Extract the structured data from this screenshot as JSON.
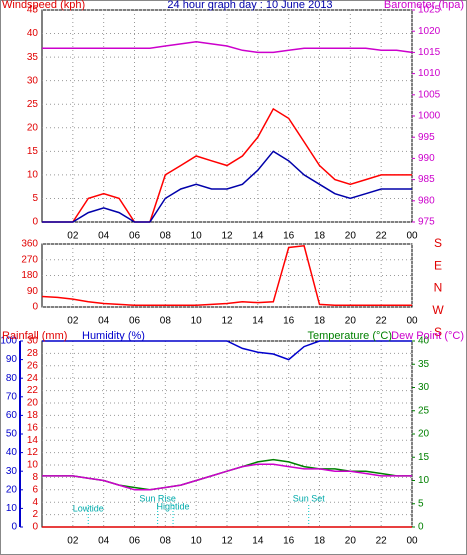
{
  "chart_data": [
    {
      "type": "line",
      "title": "24 hour graph day : 10 June 2013",
      "y_label": "Windspeed (kph)",
      "y2_label": "Barometer (hpa)",
      "ycolor": "#e00000",
      "y2color": "#cc00cc",
      "x": [
        0,
        1,
        2,
        3,
        4,
        5,
        6,
        7,
        8,
        9,
        10,
        11,
        12,
        13,
        14,
        15,
        16,
        17,
        18,
        19,
        20,
        21,
        22,
        23,
        24
      ],
      "xlim": [
        0,
        24
      ],
      "xticks": [
        {
          "value": 2,
          "label": "02"
        },
        {
          "value": 4,
          "label": "04"
        },
        {
          "value": 6,
          "label": "06"
        },
        {
          "value": 8,
          "label": "08"
        },
        10,
        12,
        14,
        16,
        18,
        20,
        22,
        {
          "value": 24,
          "label": "00"
        }
      ],
      "ylim": [
        0,
        45
      ],
      "yticks": [
        0,
        5,
        10,
        15,
        20,
        25,
        30,
        35,
        40,
        45
      ],
      "y2lim": [
        975,
        1025
      ],
      "y2ticks": [
        975,
        980,
        985,
        990,
        995,
        1000,
        1005,
        1010,
        1015,
        1020,
        1025
      ],
      "series": [
        {
          "color": "#ff0000",
          "values": [
            0,
            0,
            0,
            5,
            6,
            5,
            0,
            0,
            10,
            12,
            14,
            13,
            12,
            14,
            18,
            24,
            22,
            17,
            12,
            9,
            8,
            9,
            10,
            10,
            10
          ]
        },
        {
          "color": "#0000aa",
          "values": [
            0,
            0,
            0,
            2,
            3,
            2,
            0,
            0,
            5,
            7,
            8,
            7,
            7,
            8,
            11,
            15,
            13,
            10,
            8,
            6,
            5,
            6,
            7,
            7,
            7
          ]
        },
        {
          "color": "#cc00cc",
          "axis": "y2",
          "values": [
            1016,
            1016,
            1016,
            1016,
            1016,
            1016,
            1016,
            1016,
            1016.5,
            1017,
            1017.5,
            1017,
            1016.5,
            1015.5,
            1015,
            1015,
            1015.5,
            1016,
            1016,
            1016,
            1016,
            1016,
            1015.5,
            1015.5,
            1015
          ]
        }
      ]
    },
    {
      "type": "line",
      "ycolor": "#e00000",
      "compass_labels": [
        "S",
        "E",
        "N",
        "W",
        "S"
      ],
      "x": [
        0,
        1,
        2,
        3,
        4,
        5,
        6,
        7,
        8,
        9,
        10,
        11,
        12,
        13,
        14,
        15,
        16,
        17,
        18,
        19,
        20,
        21,
        22,
        23,
        24
      ],
      "xlim": [
        0,
        24
      ],
      "xticks": [
        {
          "value": 2,
          "label": "02"
        },
        {
          "value": 4,
          "label": "04"
        },
        {
          "value": 6,
          "label": "06"
        },
        {
          "value": 8,
          "label": "08"
        },
        10,
        12,
        14,
        16,
        18,
        20,
        22,
        {
          "value": 24,
          "label": "00"
        }
      ],
      "ylim": [
        0,
        360
      ],
      "yticks": [
        0,
        90,
        180,
        270,
        360
      ],
      "series": [
        {
          "color": "#ff0000",
          "values": [
            60,
            55,
            45,
            30,
            20,
            15,
            10,
            10,
            10,
            10,
            10,
            15,
            20,
            30,
            25,
            30,
            340,
            350,
            15,
            10,
            10,
            10,
            10,
            10,
            10
          ]
        }
      ]
    },
    {
      "type": "line",
      "y_label": "Rainfall (mm)",
      "y3_label": "Humidity (%)",
      "y2_label": "Temperature (°C)",
      "y2b_label": "Dew Point (°C)",
      "ycolor": "#e00000",
      "y2color": "#008000",
      "y3color": "#0000cc",
      "y2bcolor": "#cc00cc",
      "x": [
        0,
        1,
        2,
        3,
        4,
        5,
        6,
        7,
        8,
        9,
        10,
        11,
        12,
        13,
        14,
        15,
        16,
        17,
        18,
        19,
        20,
        21,
        22,
        23,
        24
      ],
      "xlim": [
        0,
        24
      ],
      "xticks": [
        {
          "value": 2,
          "label": "02"
        },
        {
          "value": 4,
          "label": "04"
        },
        {
          "value": 6,
          "label": "06"
        },
        {
          "value": 8,
          "label": "08"
        },
        10,
        12,
        14,
        16,
        18,
        20,
        22,
        {
          "value": 24,
          "label": "00"
        }
      ],
      "ylim": [
        0,
        30
      ],
      "yticks": [
        0,
        2,
        4,
        6,
        8,
        10,
        12,
        14,
        16,
        18,
        20,
        22,
        24,
        26,
        28,
        30
      ],
      "y3lim": [
        0,
        100
      ],
      "y3ticks": [
        0,
        10,
        20,
        30,
        40,
        50,
        60,
        70,
        80,
        90,
        100
      ],
      "y2lim": [
        0,
        40
      ],
      "y2ticks": [
        0,
        5,
        10,
        15,
        20,
        25,
        30,
        35,
        40
      ],
      "series": [
        {
          "color": "#0000cc",
          "axis": "y3",
          "values": [
            100,
            100,
            100,
            100,
            100,
            100,
            100,
            100,
            100,
            100,
            100,
            100,
            100,
            96,
            94,
            93,
            90,
            97,
            100,
            100,
            100,
            100,
            100,
            100,
            100
          ]
        },
        {
          "color": "#008000",
          "axis": "y2",
          "values": [
            11,
            11,
            11,
            10.5,
            10,
            9,
            8.5,
            8,
            8.5,
            9,
            10,
            11,
            12,
            13,
            14,
            14.5,
            14,
            13,
            12.5,
            12.5,
            12,
            12,
            11.5,
            11,
            11
          ]
        },
        {
          "color": "#cc00cc",
          "axis": "y2",
          "values": [
            11,
            11,
            11,
            10.5,
            10,
            9,
            8,
            8,
            8.5,
            9,
            10,
            11,
            12,
            13,
            13.5,
            13.5,
            13,
            12.5,
            12.5,
            12,
            12,
            11.5,
            11,
            11,
            11
          ]
        },
        {
          "color": "#e00000",
          "values": [
            0,
            0,
            0,
            0,
            0,
            0,
            0,
            0,
            0,
            0,
            0,
            0,
            0,
            0,
            0,
            0,
            0,
            0,
            0,
            0,
            0,
            0,
            0,
            0,
            0
          ]
        }
      ],
      "annotations": [
        {
          "text": "Lowtide",
          "x": 3
        },
        {
          "text": "Sun Rise",
          "x": 7.5
        },
        {
          "text": "Hightide",
          "x": 8.5
        },
        {
          "text": "Sun Set",
          "x": 17.3
        }
      ]
    }
  ]
}
